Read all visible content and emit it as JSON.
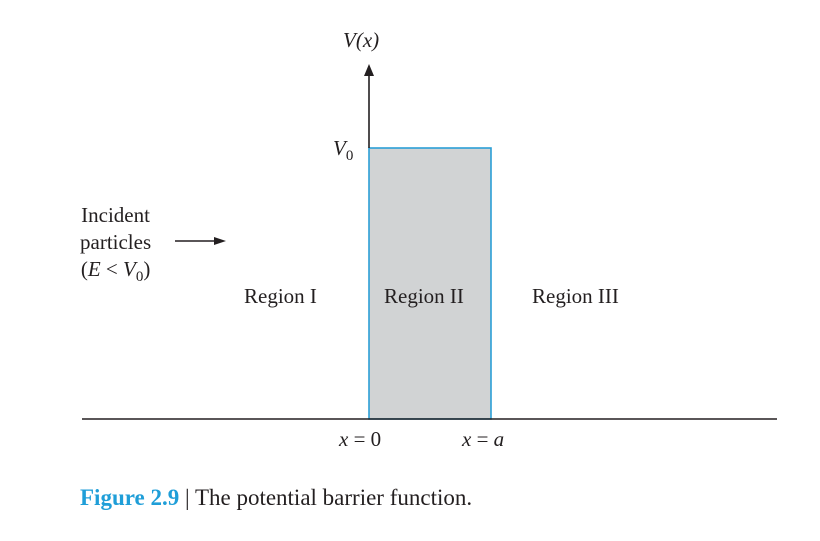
{
  "figure": {
    "axis_label": "V(x)",
    "v0_symbol": "V",
    "v0_subscript": "0",
    "incident": {
      "line1": "Incident",
      "line2": "particles",
      "line3_open": "(",
      "line3_E": "E",
      "line3_lt": " < ",
      "line3_V": "V",
      "line3_sub": "0",
      "line3_close": ")"
    },
    "regions": [
      "Region I",
      "Region II",
      "Region III"
    ],
    "x0": {
      "var": "x",
      "eq": " = ",
      "val": "0"
    },
    "xa": {
      "var": "x",
      "eq": " = ",
      "val": "a"
    },
    "caption": {
      "number": "Figure 2.9",
      "separator": " | ",
      "text": "The potential barrier function."
    },
    "colors": {
      "barrier_fill": "#d1d3d4",
      "barrier_stroke": "#2b9fd6",
      "axis": "#231f20",
      "caption_accent": "#1f9ed8"
    }
  }
}
